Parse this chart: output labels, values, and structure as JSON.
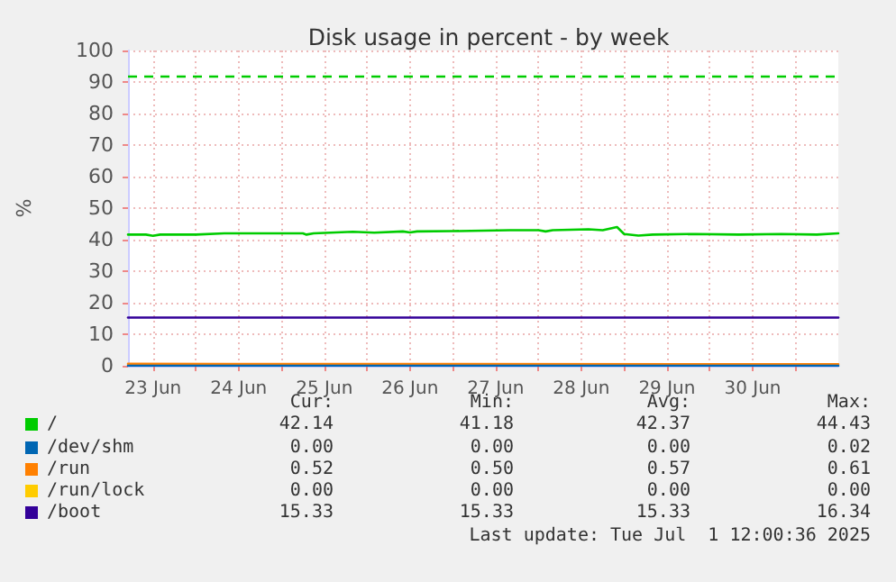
{
  "chart_data": {
    "type": "line",
    "title": "Disk usage in percent - by week",
    "ylabel": "%",
    "xlim": [
      "2025-06-23T05:00",
      "2025-07-01T12:00"
    ],
    "xticks": [
      {
        "value": "2025-06-23T12:00",
        "label": "23 Jun"
      },
      {
        "value": "2025-06-24T00:00",
        "label": null
      },
      {
        "value": "2025-06-24T12:00",
        "label": "24 Jun"
      },
      {
        "value": "2025-06-25T00:00",
        "label": null
      },
      {
        "value": "2025-06-25T12:00",
        "label": "25 Jun"
      },
      {
        "value": "2025-06-26T00:00",
        "label": null
      },
      {
        "value": "2025-06-26T12:00",
        "label": "26 Jun"
      },
      {
        "value": "2025-06-27T00:00",
        "label": null
      },
      {
        "value": "2025-06-27T12:00",
        "label": "27 Jun"
      },
      {
        "value": "2025-06-28T00:00",
        "label": null
      },
      {
        "value": "2025-06-28T12:00",
        "label": "28 Jun"
      },
      {
        "value": "2025-06-29T00:00",
        "label": null
      },
      {
        "value": "2025-06-29T12:00",
        "label": "29 Jun"
      },
      {
        "value": "2025-06-30T00:00",
        "label": null
      },
      {
        "value": "2025-06-30T12:00",
        "label": "30 Jun"
      },
      {
        "value": "2025-07-01T00:00",
        "label": null
      }
    ],
    "ylim": [
      0,
      100
    ],
    "yticks": [
      0,
      10,
      20,
      30,
      40,
      50,
      60,
      70,
      80,
      90,
      100
    ],
    "grid": true,
    "legend": "bottom",
    "marker": "none",
    "line_style": "solid",
    "series": [
      {
        "name": "/",
        "color": "#00cc00",
        "x": [
          "2025-06-23T05:00",
          "2025-06-23T10:00",
          "2025-06-23T12:00",
          "2025-06-23T14:00",
          "2025-06-24T00:00",
          "2025-06-24T08:00",
          "2025-06-25T06:00",
          "2025-06-25T07:00",
          "2025-06-25T09:00",
          "2025-06-25T20:00",
          "2025-06-26T02:00",
          "2025-06-26T10:00",
          "2025-06-26T12:00",
          "2025-06-26T14:00",
          "2025-06-27T00:00",
          "2025-06-27T16:00",
          "2025-06-28T00:00",
          "2025-06-28T02:00",
          "2025-06-28T04:00",
          "2025-06-28T14:00",
          "2025-06-28T18:00",
          "2025-06-28T22:00",
          "2025-06-29T00:00",
          "2025-06-29T04:00",
          "2025-06-29T08:00",
          "2025-06-29T20:00",
          "2025-06-30T08:00",
          "2025-06-30T20:00",
          "2025-07-01T06:00",
          "2025-07-01T12:00"
        ],
        "values": [
          41.6,
          41.6,
          41.2,
          41.6,
          41.6,
          42.0,
          42.0,
          41.6,
          42.0,
          42.5,
          42.2,
          42.6,
          42.3,
          42.6,
          42.7,
          43.0,
          43.0,
          42.6,
          43.0,
          43.3,
          43.0,
          44.0,
          41.8,
          41.3,
          41.6,
          41.8,
          41.6,
          41.8,
          41.6,
          42.0
        ]
      },
      {
        "name": "/dev/shm",
        "color": "#0066b3",
        "x": [
          "2025-06-23T05:00",
          "2025-07-01T12:00"
        ],
        "values": [
          0,
          0
        ]
      },
      {
        "name": "/run",
        "color": "#ff8000",
        "x": [
          "2025-06-23T05:00",
          "2025-07-01T12:00"
        ],
        "values": [
          0.6,
          0.5
        ]
      },
      {
        "name": "/run/lock",
        "color": "#ffcc00",
        "values": [
          null,
          null
        ]
      },
      {
        "name": "/boot",
        "color": "#330099",
        "x": [
          "2025-06-23T05:00",
          "2025-07-01T12:00"
        ],
        "values": [
          15.3,
          15.3
        ]
      }
    ],
    "ref_lines": [
      {
        "axis": "y",
        "value": 92,
        "label": null,
        "color": "#00cc00",
        "line_style": "dashed"
      }
    ],
    "annotations": [
      "Cur:",
      "Min:",
      "Avg:",
      "Max:",
      "42.14",
      "41.18",
      "42.37",
      "44.43",
      "0.00",
      "0.00",
      "0.00",
      "0.02",
      "0.52",
      "0.50",
      "0.57",
      "0.61",
      "0.00",
      "0.00",
      "0.00",
      "0.00",
      "15.33",
      "15.33",
      "15.33",
      "16.34",
      "Last update: Tue Jul  1 12:00:36 2025"
    ]
  }
}
